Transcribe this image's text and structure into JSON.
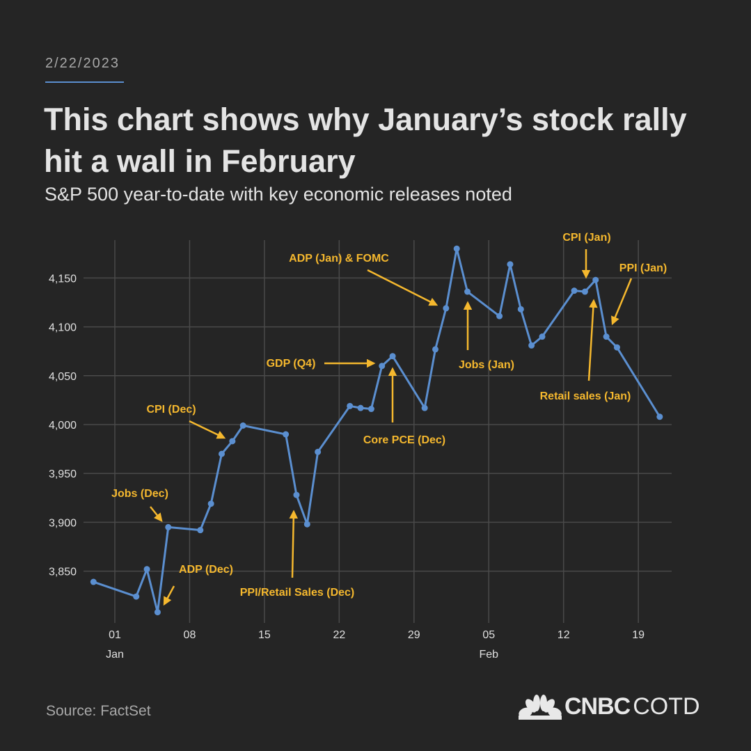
{
  "header": {
    "date": "2/22/2023",
    "title": "This chart shows why January’s stock rally hit a wall in February",
    "subtitle": "S&P 500 year-to-date with key economic releases noted"
  },
  "footer": {
    "source": "Source: FactSet",
    "logo_brand": "CNBC",
    "logo_suffix": "COTD"
  },
  "colors": {
    "background": "#252525",
    "line": "#5b8fd0",
    "annotation": "#f5b82e",
    "grid": "#4a4a4a"
  },
  "chart_data": {
    "type": "line",
    "title": "",
    "xlabel": "",
    "ylabel": "",
    "ylim": [
      3800,
      4190
    ],
    "grid": true,
    "yticks": [
      3850,
      3900,
      3950,
      4000,
      4050,
      4100,
      4150
    ],
    "ytick_labels": [
      "3,850",
      "3,900",
      "3,950",
      "4,000",
      "4,050",
      "4,100",
      "4,150"
    ],
    "xticks": [
      {
        "date": "2023-01-01",
        "label": "01",
        "month": "Jan"
      },
      {
        "date": "2023-01-08",
        "label": "08",
        "month": ""
      },
      {
        "date": "2023-01-15",
        "label": "15",
        "month": ""
      },
      {
        "date": "2023-01-22",
        "label": "22",
        "month": ""
      },
      {
        "date": "2023-01-29",
        "label": "29",
        "month": ""
      },
      {
        "date": "2023-02-05",
        "label": "05",
        "month": "Feb"
      },
      {
        "date": "2023-02-12",
        "label": "12",
        "month": ""
      },
      {
        "date": "2023-02-19",
        "label": "19",
        "month": ""
      }
    ],
    "series": [
      {
        "points": [
          [
            "2022-12-30",
            3839
          ],
          [
            "2023-01-03",
            3824
          ],
          [
            "2023-01-04",
            3852
          ],
          [
            "2023-01-05",
            3808
          ],
          [
            "2023-01-06",
            3895
          ],
          [
            "2023-01-09",
            3892
          ],
          [
            "2023-01-10",
            3919
          ],
          [
            "2023-01-11",
            3970
          ],
          [
            "2023-01-12",
            3983
          ],
          [
            "2023-01-13",
            3999
          ],
          [
            "2023-01-17",
            3990
          ],
          [
            "2023-01-18",
            3928
          ],
          [
            "2023-01-19",
            3898
          ],
          [
            "2023-01-20",
            3972
          ],
          [
            "2023-01-23",
            4019
          ],
          [
            "2023-01-24",
            4017
          ],
          [
            "2023-01-25",
            4016
          ],
          [
            "2023-01-26",
            4060
          ],
          [
            "2023-01-27",
            4070
          ],
          [
            "2023-01-30",
            4017
          ],
          [
            "2023-01-31",
            4077
          ],
          [
            "2023-02-01",
            4119
          ],
          [
            "2023-02-02",
            4180
          ],
          [
            "2023-02-03",
            4136
          ],
          [
            "2023-02-06",
            4111
          ],
          [
            "2023-02-07",
            4164
          ],
          [
            "2023-02-08",
            4118
          ],
          [
            "2023-02-09",
            4081
          ],
          [
            "2023-02-10",
            4090
          ],
          [
            "2023-02-13",
            4137
          ],
          [
            "2023-02-14",
            4136
          ],
          [
            "2023-02-15",
            4148
          ],
          [
            "2023-02-16",
            4090
          ],
          [
            "2023-02-17",
            4079
          ],
          [
            "2023-02-21",
            4008
          ]
        ]
      }
    ],
    "annotations": [
      {
        "label": "Jobs (Dec)",
        "date": "2023-01-06"
      },
      {
        "label": "ADP (Dec)",
        "date": "2023-01-05"
      },
      {
        "label": "CPI (Dec)",
        "date": "2023-01-12"
      },
      {
        "label": "PPI/Retail Sales (Dec)",
        "date": "2023-01-18"
      },
      {
        "label": "GDP (Q4)",
        "date": "2023-01-26"
      },
      {
        "label": "Core PCE (Dec)",
        "date": "2023-01-27"
      },
      {
        "label": "ADP (Jan) & FOMC",
        "date": "2023-02-01"
      },
      {
        "label": "Jobs (Jan)",
        "date": "2023-02-03"
      },
      {
        "label": "CPI (Jan)",
        "date": "2023-02-14"
      },
      {
        "label": "PPI (Jan)",
        "date": "2023-02-16"
      },
      {
        "label": "Retail sales (Jan)",
        "date": "2023-02-15"
      }
    ]
  }
}
